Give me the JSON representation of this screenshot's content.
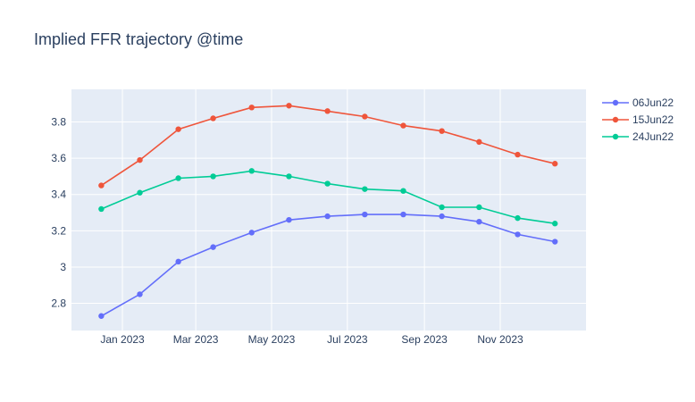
{
  "chart_data": {
    "type": "line",
    "title": "Implied FFR trajectory @time",
    "xlabel": "",
    "ylabel": "",
    "x": [
      "2022-12-15",
      "2023-01-15",
      "2023-02-15",
      "2023-03-15",
      "2023-04-15",
      "2023-05-15",
      "2023-06-15",
      "2023-07-15",
      "2023-08-15",
      "2023-09-15",
      "2023-10-15",
      "2023-11-15",
      "2023-12-15"
    ],
    "x_ticks": [
      {
        "date": "2023-01-01",
        "label": "Jan 2023"
      },
      {
        "date": "2023-03-01",
        "label": "Mar 2023"
      },
      {
        "date": "2023-05-01",
        "label": "May 2023"
      },
      {
        "date": "2023-07-01",
        "label": "Jul 2023"
      },
      {
        "date": "2023-09-01",
        "label": "Sep 2023"
      },
      {
        "date": "2023-11-01",
        "label": "Nov 2023"
      }
    ],
    "y_ticks": [
      {
        "value": 2.8,
        "label": "2.8"
      },
      {
        "value": 3.0,
        "label": "3"
      },
      {
        "value": 3.2,
        "label": "3.2"
      },
      {
        "value": 3.4,
        "label": "3.4"
      },
      {
        "value": 3.6,
        "label": "3.6"
      },
      {
        "value": 3.8,
        "label": "3.8"
      }
    ],
    "xlim": [
      "2022-11-21",
      "2024-01-09"
    ],
    "ylim": [
      2.65,
      3.98
    ],
    "grid": true,
    "legend_position": "top-right",
    "series": [
      {
        "name": "06Jun22",
        "color": "#636efa",
        "values": [
          2.73,
          2.85,
          3.03,
          3.11,
          3.19,
          3.26,
          3.28,
          3.29,
          3.29,
          3.28,
          3.25,
          3.18,
          3.14
        ]
      },
      {
        "name": "15Jun22",
        "color": "#ef553b",
        "values": [
          3.45,
          3.59,
          3.76,
          3.82,
          3.88,
          3.89,
          3.86,
          3.83,
          3.78,
          3.75,
          3.69,
          3.62,
          3.57
        ]
      },
      {
        "name": "24Jun22",
        "color": "#00cc96",
        "values": [
          3.32,
          3.41,
          3.49,
          3.5,
          3.53,
          3.5,
          3.46,
          3.43,
          3.42,
          3.33,
          3.33,
          3.27,
          3.24
        ]
      }
    ]
  }
}
